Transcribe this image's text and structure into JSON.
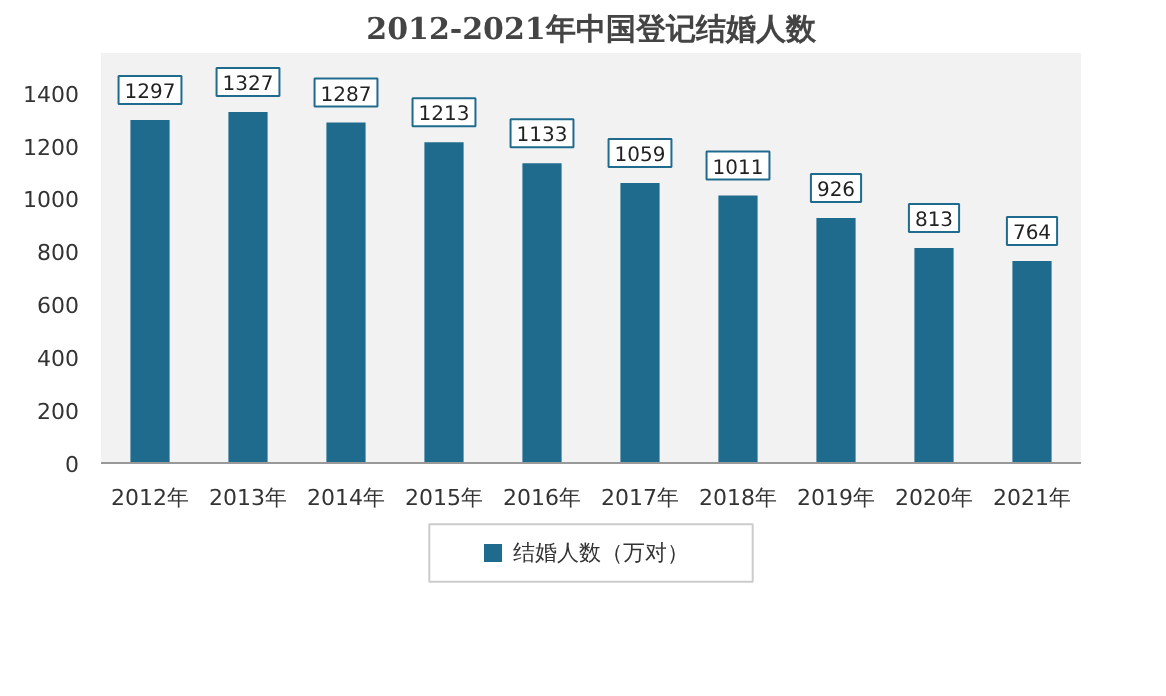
{
  "chart_data": {
    "type": "bar",
    "title": "2012-2021年中国登记结婚人数",
    "categories": [
      "2012年",
      "2013年",
      "2014年",
      "2015年",
      "2016年",
      "2017年",
      "2018年",
      "2019年",
      "2020年",
      "2021年"
    ],
    "series": [
      {
        "name": "结婚人数（万对）",
        "color": "#1f6b8e",
        "values": [
          1297,
          1327,
          1287,
          1213,
          1133,
          1059,
          1011,
          926,
          813,
          764
        ]
      }
    ],
    "ylim": [
      0,
      1550
    ],
    "yticks": [
      0,
      200,
      400,
      600,
      800,
      1000,
      1200,
      1400
    ],
    "data_labels": true,
    "grid": false,
    "legend": "bottom"
  }
}
